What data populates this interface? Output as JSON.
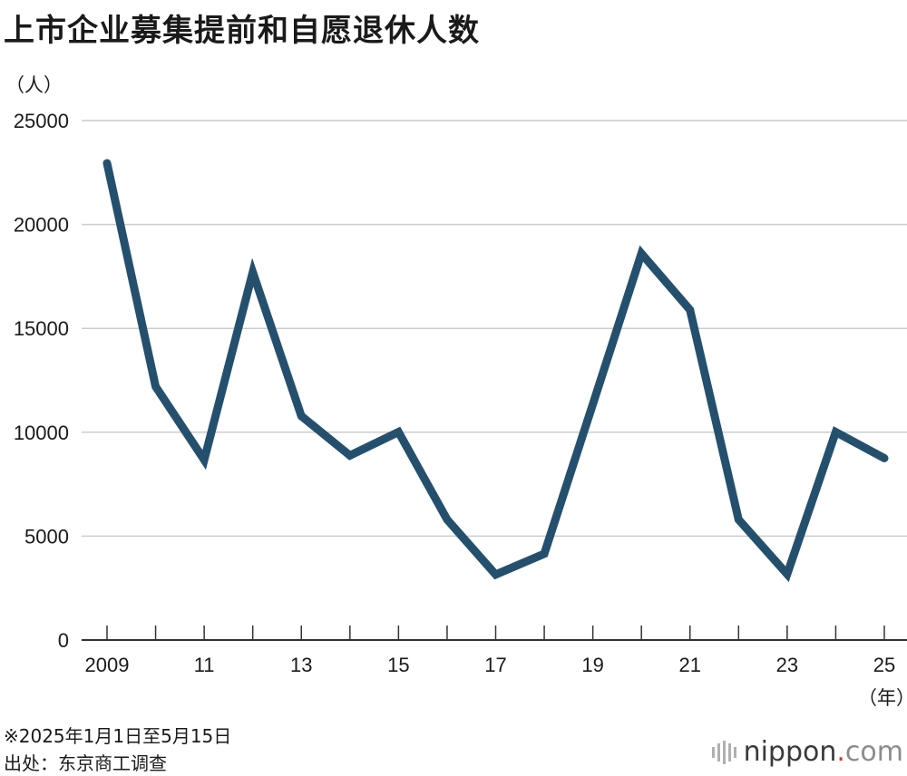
{
  "title": "上市企业募集提前和自愿退休人数",
  "y_unit": "（人）",
  "x_unit": "（年）",
  "notes": {
    "period": "※2025年1月1日至5月15日",
    "source": "出处：东京商工调查"
  },
  "logo": {
    "name": "nippon",
    "dot": ".",
    "suffix": "com"
  },
  "colors": {
    "line": "#24506e",
    "grid": "#cccccc",
    "axis": "#333333"
  },
  "chart_data": {
    "type": "line",
    "title": "上市企业募集提前和自愿退休人数",
    "ylabel": "（人）",
    "xlabel": "（年）",
    "x": [
      2009,
      2010,
      2011,
      2012,
      2013,
      2014,
      2015,
      2016,
      2017,
      2018,
      2019,
      2020,
      2021,
      2022,
      2023,
      2024,
      2025
    ],
    "x_tick_labels": [
      "2009",
      "",
      "11",
      "",
      "13",
      "",
      "15",
      "",
      "17",
      "",
      "19",
      "",
      "21",
      "",
      "23",
      "",
      "25"
    ],
    "y_ticks": [
      0,
      5000,
      10000,
      15000,
      20000,
      25000
    ],
    "ylim": [
      0,
      25000
    ],
    "grid": true,
    "series": [
      {
        "values": [
          22950,
          12200,
          8670,
          17700,
          10780,
          8880,
          10010,
          5800,
          3150,
          4150,
          11350,
          18600,
          15890,
          5800,
          3170,
          10010,
          8750
        ]
      }
    ]
  }
}
